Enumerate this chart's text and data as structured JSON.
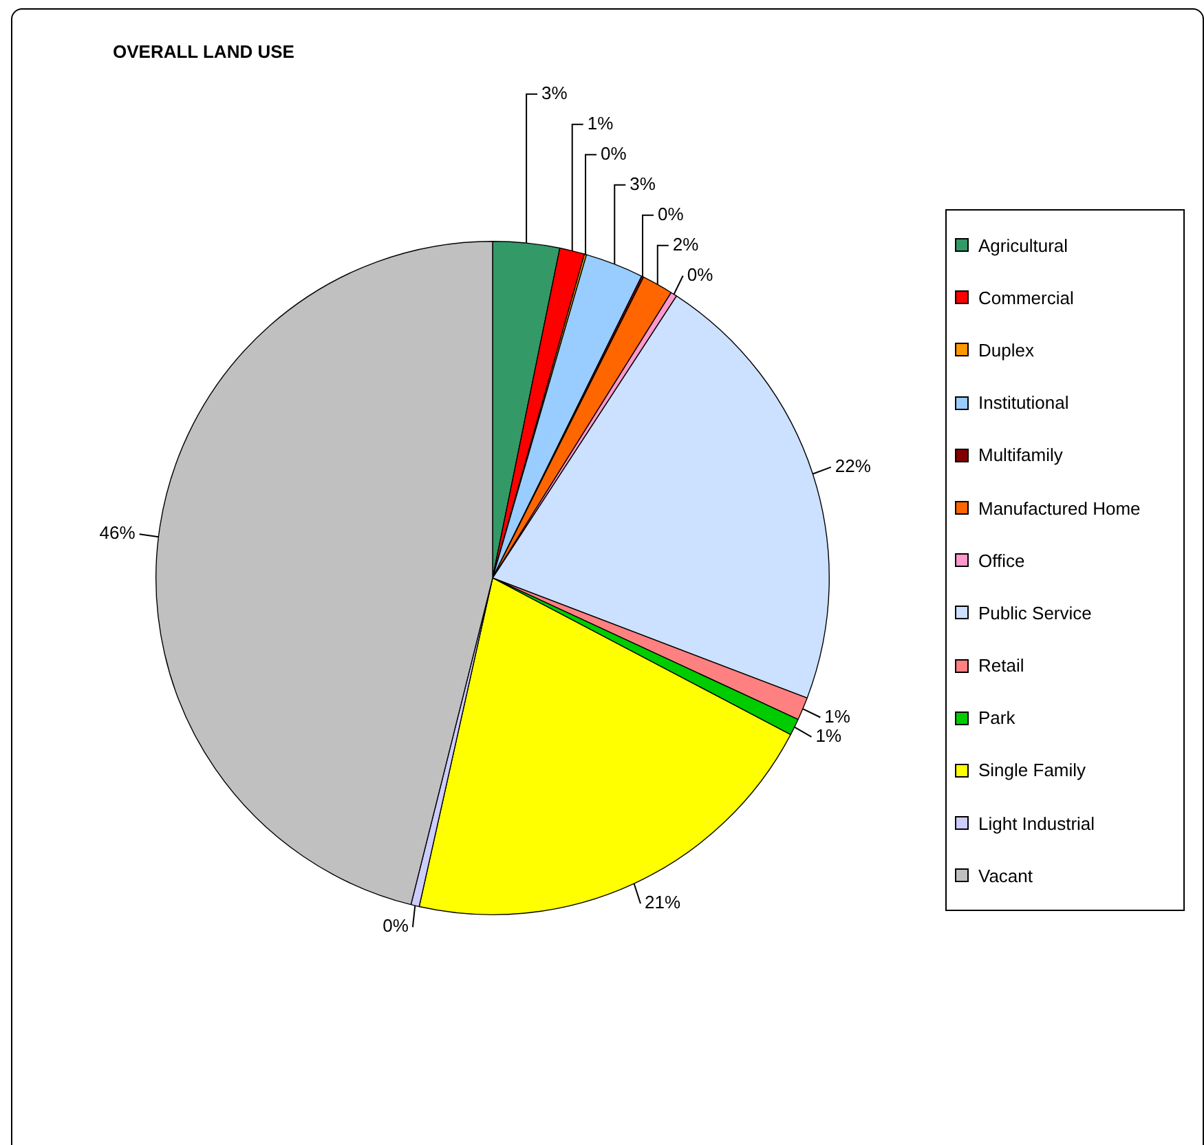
{
  "chart_data": {
    "type": "pie",
    "title": "OVERALL LAND USE",
    "categories": [
      "Agricultural",
      "Commercial",
      "Duplex",
      "Institutional",
      "Multifamily",
      "Manufactured Home",
      "Office",
      "Public Service",
      "Retail",
      "Park",
      "Single Family",
      "Light Industrial",
      "Vacant"
    ],
    "values": [
      3.2,
      1.2,
      0.1,
      2.8,
      0.1,
      1.5,
      0.3,
      21.6,
      1.1,
      0.8,
      20.8,
      0.4,
      46.1
    ],
    "value_labels": [
      "3%",
      "1%",
      "0%",
      "3%",
      "0%",
      "2%",
      "0%",
      "22%",
      "1%",
      "1%",
      "21%",
      "0%",
      "46%"
    ],
    "colors": [
      "#339966",
      "#ff0000",
      "#ff9900",
      "#99ccff",
      "#800000",
      "#ff6600",
      "#ff99cc",
      "#cce0ff",
      "#ff8080",
      "#00cc00",
      "#ffff00",
      "#ccccff",
      "#c0c0c0"
    ],
    "legend": "right"
  }
}
